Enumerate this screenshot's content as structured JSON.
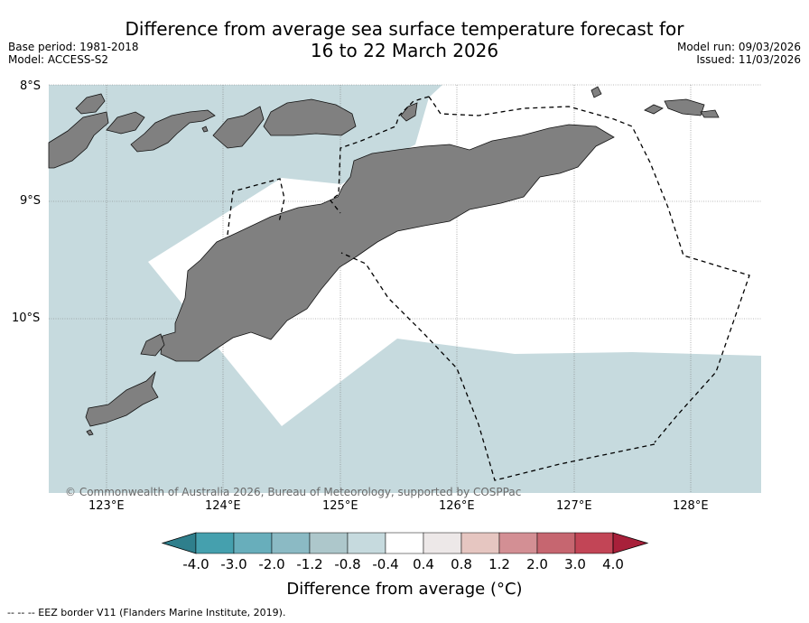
{
  "title": {
    "line1": "Difference from average sea surface temperature forecast for",
    "line2": "16 to 22 March 2026"
  },
  "meta_left": {
    "base_period": "Base period: 1981-2018",
    "model": "Model: ACCESS-S2"
  },
  "meta_right": {
    "model_run": "Model run: 09/03/2026",
    "issued": "Issued: 11/03/2026"
  },
  "map": {
    "lat_labels": [
      "8°S",
      "9°S",
      "10°S"
    ],
    "lon_labels": [
      "123°E",
      "124°E",
      "125°E",
      "126°E",
      "127°E",
      "128°E"
    ],
    "copyright": "© Commonwealth of Australia 2026, Bureau of Meteorology, supported by COSPPac",
    "colors": {
      "land": "#808080",
      "anomaly_light_blue": "#c6dade",
      "neutral": "#ffffff"
    }
  },
  "colorbar": {
    "labels": [
      "-4.0",
      "-3.0",
      "-2.0",
      "-1.2",
      "-0.8",
      "-0.4",
      "0.4",
      "0.8",
      "1.2",
      "2.0",
      "3.0",
      "4.0"
    ],
    "colors": [
      "#2f7f8c",
      "#45a0ae",
      "#68aebb",
      "#8bbac4",
      "#adc7cb",
      "#c6dade",
      "#ffffff",
      "#ede8e8",
      "#e6c6c1",
      "#d38f94",
      "#c66670",
      "#c24556",
      "#a8203a"
    ],
    "title": "Difference from average (°C)"
  },
  "legend_note": "--  --  -- EEZ border V11 (Flanders Marine Institute, 2019)."
}
